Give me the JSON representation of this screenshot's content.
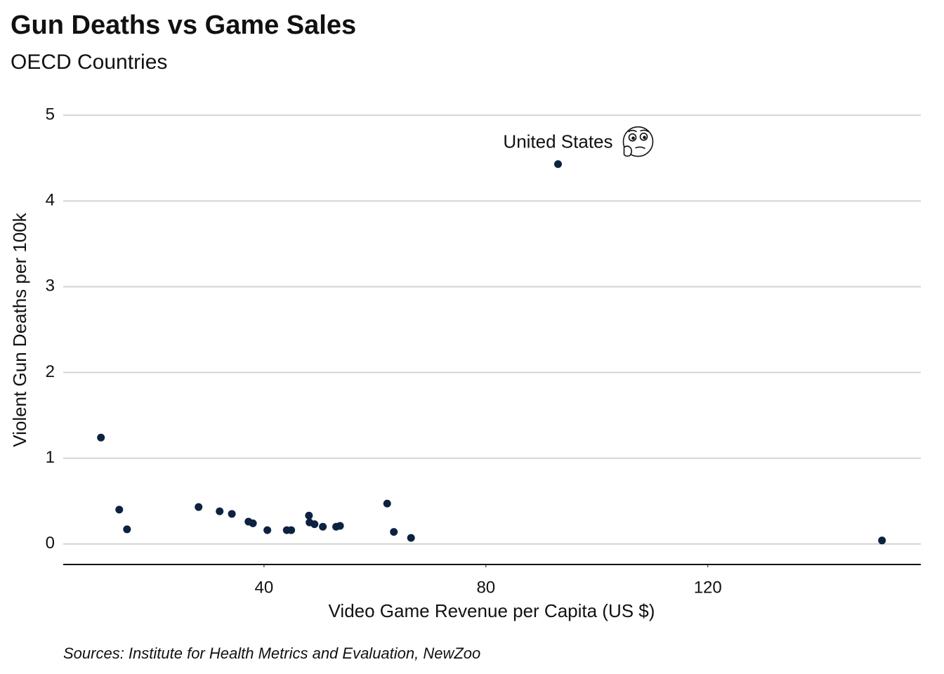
{
  "chart_data": {
    "type": "scatter",
    "title": "Gun Deaths vs Game Sales",
    "subtitle": "OECD Countries",
    "x_label": "Video Game Revenue per Capita (US $)",
    "y_label": "Violent Gun Deaths per 100k",
    "caption": "Sources: Institute for Health Metrics and Evaluation, NewZoo",
    "annotation": "United States",
    "color": "#0d2240",
    "x": [
      10.6,
      13.9,
      15.3,
      28.2,
      32.0,
      34.2,
      37.2,
      38.0,
      40.6,
      44.1,
      44.9,
      48.1,
      48.2,
      49.1,
      50.6,
      53.0,
      53.7,
      62.2,
      63.4,
      66.5,
      93.0,
      151.4
    ],
    "values": [
      1.24,
      0.4,
      0.17,
      0.43,
      0.38,
      0.35,
      0.26,
      0.24,
      0.16,
      0.16,
      0.16,
      0.33,
      0.25,
      0.23,
      0.2,
      0.2,
      0.21,
      0.47,
      0.14,
      0.07,
      4.43,
      0.04
    ],
    "xlim": [
      3.8,
      158.4
    ],
    "ylim": [
      -0.24,
      5.05
    ],
    "xticks": [
      40,
      80,
      120
    ],
    "yticks": [
      0,
      1,
      2,
      3,
      4,
      5
    ],
    "grid": true
  }
}
